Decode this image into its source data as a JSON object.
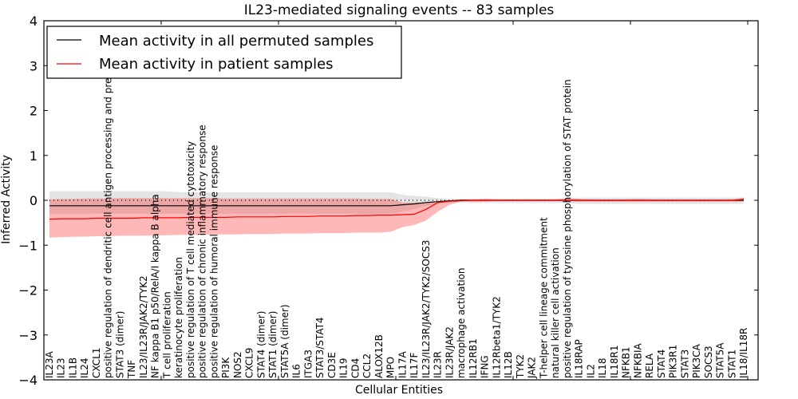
{
  "chart_data": {
    "type": "line",
    "title": "IL23-mediated signaling events -- 83 samples",
    "xlabel": "Cellular Entities",
    "ylabel": "Inferred Activity",
    "ylim": [
      -4,
      4
    ],
    "yticks": [
      -4,
      -3,
      -2,
      -1,
      0,
      1,
      2,
      3,
      4
    ],
    "ytick_labels": [
      "−4",
      "−3",
      "−2",
      "−1",
      "0",
      "1",
      "2",
      "3",
      "4"
    ],
    "grid": false,
    "legend": {
      "placement": "top-left",
      "entries": [
        {
          "label": "Mean activity in all permuted samples",
          "color": "#000000"
        },
        {
          "label": "Mean activity in patient samples",
          "color": "#ff0000"
        }
      ]
    },
    "categories": [
      "IL23A",
      "IL23",
      "IL1B",
      "IL24",
      "CXCL1",
      "positive regulation of dendritic cell antigen processing and presentation",
      "STAT3 (dimer)",
      "TNF",
      "IL23/IL23R/JAK2/TYK2",
      "NF kappa B1 p50/RelA/I kappa B alpha",
      "T cell proliferation",
      "keratinocyte proliferation",
      "positive regulation of T cell mediated cytotoxicity",
      "positive regulation of chronic inflammatory response",
      "positive regulation of humoral immune response",
      "PI3K",
      "NOS2",
      "CXCL9",
      "STAT4 (dimer)",
      "STAT1 (dimer)",
      "STAT5A (dimer)",
      "IL6",
      "ITGA3",
      "STAT3/STAT4",
      "CD3E",
      "IL19",
      "CD4",
      "CCL2",
      "ALOX12B",
      "MPO",
      "IL17A",
      "IL17F",
      "IL23/IL23R/JAK2/TYK2/SOCS3",
      "IL23R",
      "IL23R/JAK2",
      "macrophage activation",
      "IL12RB1",
      "IFNG",
      "IL12Rbeta1/TYK2",
      "IL12B",
      "TYK2",
      "JAK2",
      "T-helper cell lineage commitment",
      "natural killer cell activation",
      "positive regulation of tyrosine phosphorylation of STAT protein",
      "IL18RAP",
      "IL2",
      "IL18",
      "IL18R1",
      "NFKB1",
      "NFKBIA",
      "RELA",
      "STAT4",
      "PIK3R1",
      "STAT3",
      "PIK3CA",
      "SOCS3",
      "STAT5A",
      "STAT1",
      "IL18/IL18R"
    ],
    "series": [
      {
        "name": "Mean activity in all permuted samples",
        "color": "#000000",
        "values": [
          -0.12,
          -0.12,
          -0.12,
          -0.12,
          -0.12,
          -0.12,
          -0.12,
          -0.12,
          -0.12,
          -0.12,
          -0.12,
          -0.12,
          -0.12,
          -0.12,
          -0.12,
          -0.12,
          -0.12,
          -0.12,
          -0.12,
          -0.12,
          -0.12,
          -0.12,
          -0.12,
          -0.12,
          -0.12,
          -0.12,
          -0.12,
          -0.12,
          -0.12,
          -0.12,
          -0.1,
          -0.08,
          -0.05,
          -0.03,
          -0.01,
          0,
          0,
          0,
          0,
          0,
          0,
          0,
          0,
          0,
          0,
          0,
          0,
          0,
          0,
          0,
          0,
          0,
          0,
          0,
          0,
          0,
          0,
          0,
          0,
          0
        ],
        "band_low": [
          -0.3,
          -0.3,
          -0.3,
          -0.3,
          -0.3,
          -0.3,
          -0.3,
          -0.3,
          -0.3,
          -0.3,
          -0.3,
          -0.3,
          -0.3,
          -0.3,
          -0.3,
          -0.3,
          -0.3,
          -0.3,
          -0.3,
          -0.3,
          -0.3,
          -0.3,
          -0.3,
          -0.3,
          -0.3,
          -0.3,
          -0.3,
          -0.3,
          -0.3,
          -0.3,
          -0.25,
          -0.2,
          -0.12,
          -0.08,
          -0.05,
          -0.05,
          -0.06,
          -0.06,
          -0.06,
          -0.06,
          -0.06,
          -0.06,
          -0.06,
          -0.06,
          -0.06,
          -0.08,
          -0.08,
          -0.08,
          -0.08,
          -0.08,
          -0.08,
          -0.08,
          -0.08,
          -0.08,
          -0.08,
          -0.08,
          -0.08,
          -0.08,
          -0.08,
          -0.08
        ],
        "band_high": [
          0.2,
          0.2,
          0.2,
          0.2,
          0.2,
          0.2,
          0.2,
          0.2,
          0.2,
          0.2,
          0.2,
          0.18,
          0.18,
          0.18,
          0.18,
          0.18,
          0.18,
          0.18,
          0.18,
          0.18,
          0.18,
          0.18,
          0.18,
          0.18,
          0.18,
          0.18,
          0.18,
          0.18,
          0.18,
          0.18,
          0.12,
          0.1,
          0.08,
          0.05,
          0.03,
          0.03,
          0.04,
          0.04,
          0.04,
          0.04,
          0.04,
          0.04,
          0.04,
          0.04,
          0.04,
          0.06,
          0.06,
          0.06,
          0.06,
          0.06,
          0.06,
          0.06,
          0.06,
          0.06,
          0.06,
          0.06,
          0.06,
          0.06,
          0.06,
          0.06
        ]
      },
      {
        "name": "Mean activity in patient samples",
        "color": "#ff0000",
        "values": [
          -0.42,
          -0.41,
          -0.41,
          -0.41,
          -0.4,
          -0.4,
          -0.4,
          -0.4,
          -0.39,
          -0.39,
          -0.39,
          -0.39,
          -0.38,
          -0.38,
          -0.38,
          -0.38,
          -0.37,
          -0.37,
          -0.37,
          -0.37,
          -0.36,
          -0.36,
          -0.36,
          -0.35,
          -0.35,
          -0.35,
          -0.34,
          -0.34,
          -0.33,
          -0.33,
          -0.32,
          -0.31,
          -0.2,
          -0.05,
          -0.02,
          -0.01,
          0,
          0,
          0,
          0,
          0,
          0,
          0,
          0,
          0,
          0,
          0,
          0,
          0,
          0,
          0,
          0,
          0,
          0,
          0,
          0,
          0,
          0,
          0,
          0.02
        ],
        "band_low": [
          -0.83,
          -0.82,
          -0.81,
          -0.81,
          -0.8,
          -0.8,
          -0.79,
          -0.79,
          -0.79,
          -0.78,
          -0.78,
          -0.77,
          -0.77,
          -0.77,
          -0.76,
          -0.76,
          -0.76,
          -0.75,
          -0.75,
          -0.75,
          -0.74,
          -0.74,
          -0.74,
          -0.73,
          -0.73,
          -0.73,
          -0.72,
          -0.72,
          -0.72,
          -0.7,
          -0.6,
          -0.55,
          -0.45,
          -0.25,
          -0.1,
          -0.02,
          -0.03,
          -0.03,
          -0.02,
          -0.02,
          -0.02,
          -0.02,
          -0.02,
          -0.02,
          -0.02,
          -0.03,
          -0.03,
          -0.03,
          -0.03,
          -0.03,
          -0.03,
          -0.03,
          -0.03,
          -0.03,
          -0.03,
          -0.03,
          -0.03,
          -0.03,
          -0.03,
          -0.02
        ],
        "band_high": [
          0.02,
          0.03,
          0.03,
          0.04,
          0.04,
          0.04,
          0.05,
          0.05,
          0.05,
          0.05,
          0.05,
          0.05,
          0.05,
          0.05,
          0.05,
          0.04,
          0.04,
          0.04,
          0.04,
          0.04,
          0.04,
          0.04,
          0.04,
          0.04,
          0.04,
          0.04,
          0.04,
          0.03,
          0.03,
          0.03,
          -0.05,
          -0.05,
          -0.05,
          -0.05,
          -0.02,
          0.02,
          0.02,
          0.03,
          0.02,
          0.02,
          0.02,
          0.02,
          0.02,
          0.02,
          0.05,
          0.03,
          0.02,
          0.02,
          0.02,
          0.02,
          0.03,
          0.02,
          0.02,
          0.02,
          0.02,
          0.02,
          0.02,
          0.02,
          0.02,
          0.06
        ]
      }
    ]
  }
}
